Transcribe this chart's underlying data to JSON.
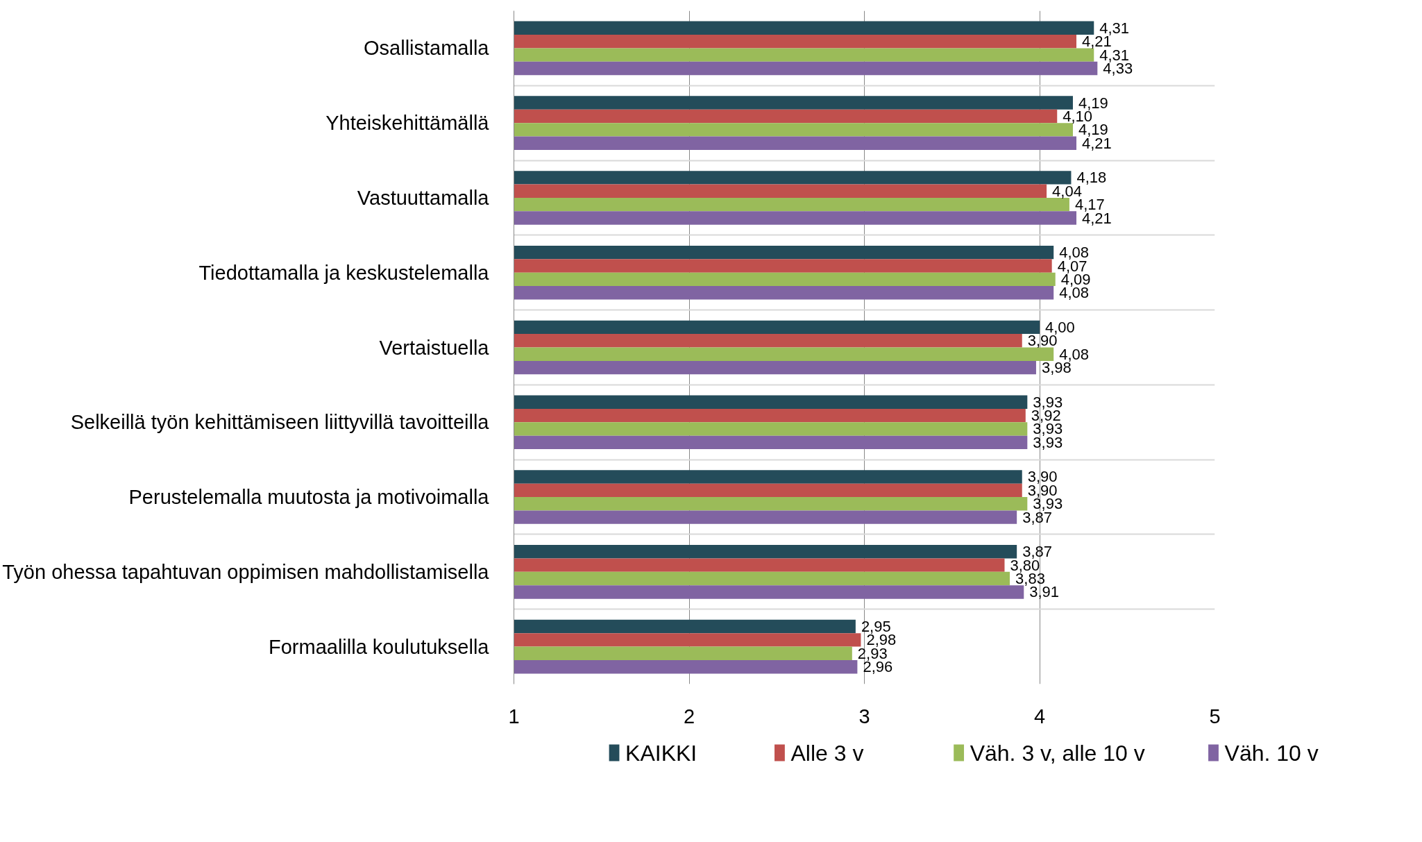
{
  "chart_data": {
    "type": "bar",
    "orientation": "horizontal",
    "categories": [
      "Osallistamalla",
      "Yhteiskehittämällä",
      "Vastuuttamalla",
      "Tiedottamalla ja keskustelemalla",
      "Vertaistuella",
      "Selkeillä työn kehittämiseen liittyvillä tavoitteilla",
      "Perustelemalla muutosta ja motivoimalla",
      "Työn ohessa tapahtuvan oppimisen mahdollistamisella",
      "Formaalilla koulutuksella"
    ],
    "series": [
      {
        "name": "KAIKKI",
        "color": "#244c5a",
        "values": [
          4.31,
          4.19,
          4.18,
          4.08,
          4.0,
          3.93,
          3.9,
          3.87,
          2.95
        ],
        "value_labels": [
          "4,31",
          "4,19",
          "4,18",
          "4,08",
          "4,00",
          "3,93",
          "3,90",
          "3,87",
          "2,95"
        ]
      },
      {
        "name": "Alle 3 v",
        "color": "#c0504d",
        "values": [
          4.21,
          4.1,
          4.04,
          4.07,
          3.9,
          3.92,
          3.9,
          3.8,
          2.98
        ],
        "value_labels": [
          "4,21",
          "4,10",
          "4,04",
          "4,07",
          "3,90",
          "3,92",
          "3,90",
          "3,80",
          "2,98"
        ]
      },
      {
        "name": "Väh. 3 v, alle 10 v",
        "color": "#9bbb59",
        "values": [
          4.31,
          4.19,
          4.17,
          4.09,
          4.08,
          3.93,
          3.93,
          3.83,
          2.93
        ],
        "value_labels": [
          "4,31",
          "4,19",
          "4,17",
          "4,09",
          "4,08",
          "3,93",
          "3,93",
          "3,83",
          "2,93"
        ]
      },
      {
        "name": "Väh. 10 v",
        "color": "#8064a2",
        "values": [
          4.33,
          4.21,
          4.21,
          4.08,
          3.98,
          3.93,
          3.87,
          3.91,
          2.96
        ],
        "value_labels": [
          "4,33",
          "4,21",
          "4,21",
          "4,08",
          "3,98",
          "3,93",
          "3,87",
          "3,91",
          "2,96"
        ]
      }
    ],
    "xlim": [
      1,
      5
    ],
    "xticks": [
      1,
      2,
      3,
      4,
      5
    ],
    "grid": true,
    "legend": "bottom"
  }
}
